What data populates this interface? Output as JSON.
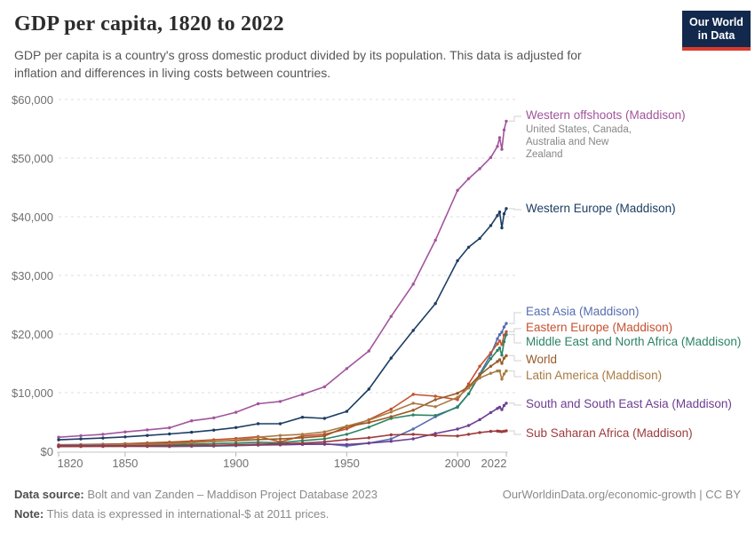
{
  "header": {
    "title": "GDP per capita, 1820 to 2022",
    "subtitle_lines": [
      "GDP per capita is a country's gross domestic product divided by its population. This data is adjusted for",
      "inflation and differences in living costs between countries."
    ],
    "logo": {
      "line1": "Our World",
      "line2": "in Data",
      "bg_color": "#12294d",
      "accent_color": "#dc3a2e"
    }
  },
  "footer": {
    "source_label": "Data source:",
    "source_text": " Bolt and van Zanden – Maddison Project Database 2023",
    "note_label": "Note:",
    "note_text": " This data is expressed in international-$ at 2011 prices.",
    "link_text": "OurWorldinData.org/economic-growth | CC BY"
  },
  "chart_data": {
    "type": "line",
    "title": "GDP per capita, 1820 to 2022",
    "xlabel": "",
    "ylabel": "",
    "xlim": [
      1820,
      2022
    ],
    "ylim": [
      0,
      60000
    ],
    "grid": "horizontal-dashed",
    "legend_position": "labels-at-line-ends-right",
    "unit": "international-$ at 2011 prices",
    "x_label_ticks": [
      1820,
      1850,
      1900,
      1950,
      2000,
      2022
    ],
    "y_tick_values": [
      0,
      10000,
      20000,
      30000,
      40000,
      50000,
      60000
    ],
    "y_tick_labels": [
      "$0",
      "$10,000",
      "$20,000",
      "$30,000",
      "$40,000",
      "$50,000",
      "$60,000"
    ],
    "x": [
      1820,
      1830,
      1840,
      1850,
      1860,
      1870,
      1880,
      1890,
      1900,
      1910,
      1920,
      1930,
      1940,
      1950,
      1960,
      1970,
      1980,
      1990,
      2000,
      2005,
      2010,
      2015,
      2018,
      2019,
      2020,
      2021,
      2022
    ],
    "series": [
      {
        "name": "Western offshoots (Maddison)",
        "color": "#a2559c",
        "note": "United States, Canada, Australia and New Zealand",
        "values": [
          2400,
          2650,
          2900,
          3300,
          3650,
          4000,
          5200,
          5700,
          6650,
          8100,
          8500,
          9700,
          11000,
          14100,
          17100,
          23000,
          28500,
          36000,
          44500,
          46500,
          48200,
          50100,
          52000,
          53500,
          51500,
          54800,
          56300
        ]
      },
      {
        "name": "Western Europe (Maddison)",
        "color": "#1d3d63",
        "values": [
          1950,
          2100,
          2250,
          2450,
          2700,
          2950,
          3250,
          3600,
          4050,
          4700,
          4700,
          5800,
          5600,
          6800,
          10600,
          15900,
          20600,
          25200,
          32500,
          34800,
          36300,
          38500,
          40200,
          40800,
          38100,
          40500,
          41400
        ]
      },
      {
        "name": "East Asia (Maddison)",
        "color": "#566eb1",
        "values": [
          890,
          870,
          850,
          830,
          820,
          810,
          850,
          880,
          950,
          1050,
          1100,
          1200,
          1300,
          900,
          1400,
          2100,
          3800,
          5900,
          7600,
          9800,
          13200,
          16500,
          19200,
          19900,
          20300,
          21200,
          21800
        ]
      },
      {
        "name": "Eastern Europe (Maddison)",
        "color": "#c4522f",
        "values": [
          960,
          1050,
          1150,
          1280,
          1420,
          1560,
          1750,
          1950,
          2180,
          2500,
          1600,
          2600,
          2900,
          3800,
          5400,
          7200,
          9700,
          9400,
          8800,
          11500,
          14500,
          16800,
          18300,
          18800,
          18200,
          19800,
          20400
        ]
      },
      {
        "name": "Middle East and North Africa (Maddison)",
        "color": "#2c8465",
        "values": [
          800,
          850,
          900,
          960,
          1020,
          1100,
          1200,
          1300,
          1400,
          1550,
          1450,
          1800,
          2100,
          2900,
          4100,
          5600,
          6200,
          6100,
          7500,
          9800,
          13000,
          15800,
          17200,
          17600,
          16400,
          18700,
          19900
        ]
      },
      {
        "name": "World",
        "color": "#9a5a27",
        "values": [
          1100,
          1150,
          1200,
          1280,
          1360,
          1450,
          1560,
          1680,
          1800,
          2000,
          2100,
          2300,
          2600,
          4200,
          4900,
          5900,
          7000,
          8800,
          9900,
          11000,
          13000,
          14500,
          15300,
          15600,
          15000,
          15900,
          16300
        ]
      },
      {
        "name": "Latin America (Maddison)",
        "color": "#a97b43",
        "values": [
          1050,
          1080,
          1100,
          1150,
          1200,
          1280,
          1470,
          1680,
          1900,
          2400,
          2700,
          2900,
          3300,
          4300,
          5300,
          6700,
          8200,
          7600,
          9200,
          10800,
          12500,
          13300,
          13700,
          13700,
          12300,
          13200,
          13700
        ]
      },
      {
        "name": "South and South East Asia (Maddison)",
        "color": "#6d3e91",
        "values": [
          960,
          955,
          950,
          945,
          940,
          940,
          980,
          1020,
          1060,
          1100,
          1100,
          1180,
          1200,
          1150,
          1400,
          1700,
          2120,
          3030,
          3790,
          4400,
          5400,
          6600,
          7300,
          7500,
          7100,
          7800,
          8200
        ]
      },
      {
        "name": "Sub Saharan Africa (Maddison)",
        "color": "#9e3a3c",
        "values": [
          800,
          820,
          840,
          860,
          880,
          900,
          950,
          1000,
          1100,
          1200,
          1270,
          1400,
          1600,
          2000,
          2300,
          2800,
          2900,
          2700,
          2600,
          2900,
          3200,
          3400,
          3450,
          3400,
          3350,
          3420,
          3480
        ]
      }
    ]
  }
}
